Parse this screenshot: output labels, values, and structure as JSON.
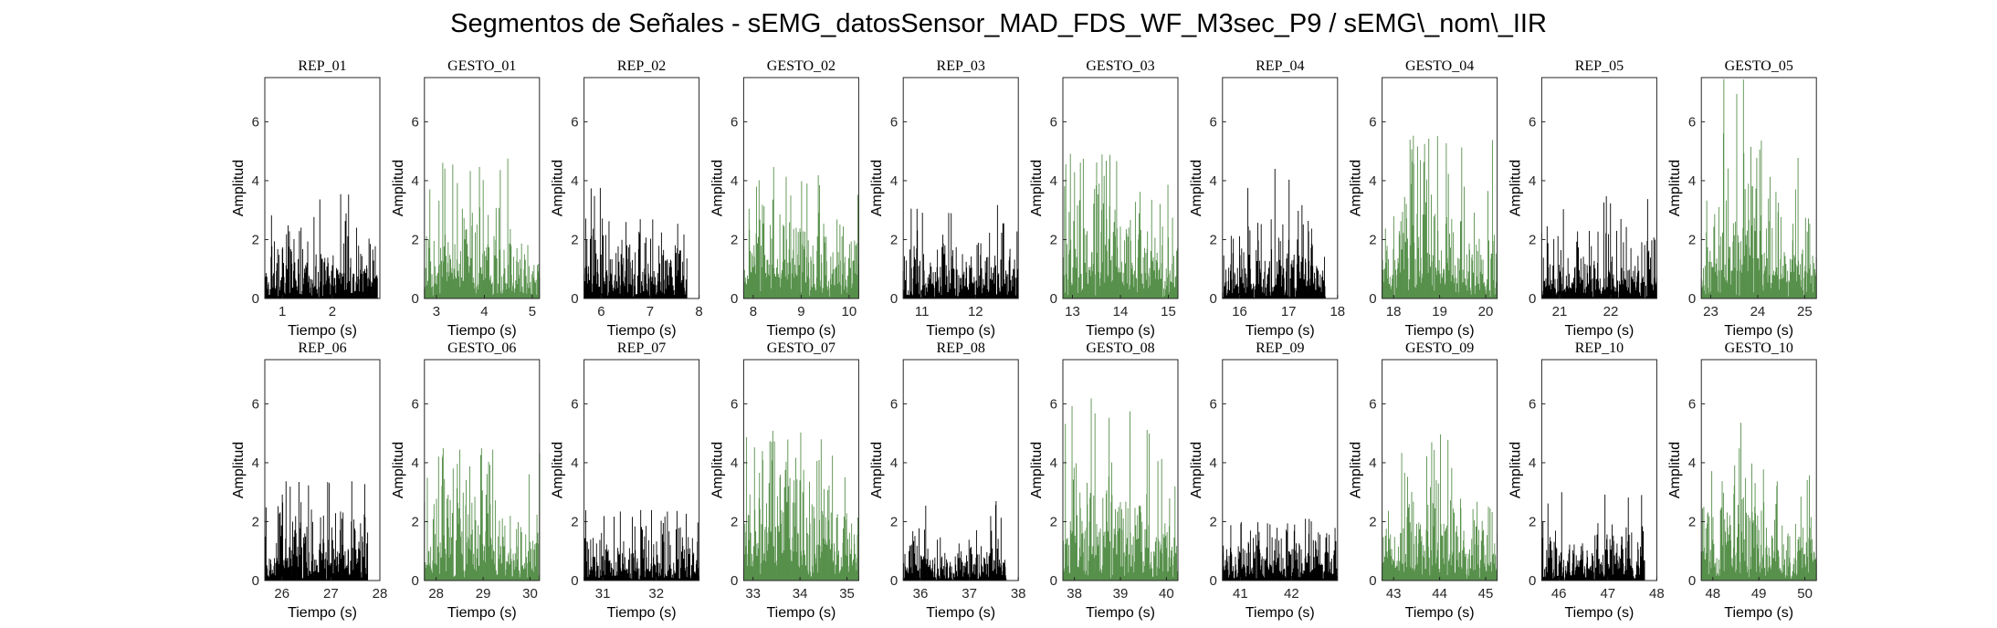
{
  "figure": {
    "title": "Segmentos de Señales - sEMG_datosSensor_MAD_FDS_WF_M3sec_P9 / sEMG\\_nom\\_IIR"
  },
  "colors": {
    "rep": "#000000",
    "gesto": "#3a7d2c",
    "axis": "#262626"
  },
  "chart_data": [
    {
      "type": "bar",
      "title": "REP_01",
      "xlabel": "Tiempo (s)",
      "ylabel": "Amplitud",
      "xlim": [
        0.65,
        2.95
      ],
      "ylim": [
        0,
        7.5
      ],
      "xticks": [
        1,
        2
      ],
      "yticks": [
        0,
        2,
        4,
        6
      ],
      "series": [
        {
          "name": "REP_01",
          "x_range": [
            0.65,
            2.9
          ],
          "typical": 0.9,
          "max": 3.6
        }
      ]
    },
    {
      "type": "bar",
      "title": "GESTO_01",
      "xlabel": "Tiempo (s)",
      "ylabel": "Amplitud",
      "xlim": [
        2.75,
        5.15
      ],
      "ylim": [
        0,
        7.5
      ],
      "xticks": [
        3,
        4,
        5
      ],
      "yticks": [
        0,
        2,
        4,
        6
      ],
      "series": [
        {
          "name": "GESTO_01",
          "x_range": [
            2.75,
            5.15
          ],
          "typical": 1.5,
          "max": 4.9
        }
      ]
    },
    {
      "type": "bar",
      "title": "REP_02",
      "xlabel": "Tiempo (s)",
      "ylabel": "Amplitud",
      "xlim": [
        5.65,
        8.0
      ],
      "ylim": [
        0,
        7.5
      ],
      "xticks": [
        6,
        7,
        8
      ],
      "yticks": [
        0,
        2,
        4,
        6
      ],
      "series": [
        {
          "name": "REP_02",
          "x_range": [
            5.65,
            7.75
          ],
          "typical": 1.0,
          "max": 3.8
        }
      ]
    },
    {
      "type": "bar",
      "title": "GESTO_02",
      "xlabel": "Tiempo (s)",
      "ylabel": "Amplitud",
      "xlim": [
        7.8,
        10.2
      ],
      "ylim": [
        0,
        7.5
      ],
      "xticks": [
        8,
        9,
        10
      ],
      "yticks": [
        0,
        2,
        4,
        6
      ],
      "series": [
        {
          "name": "GESTO_02",
          "x_range": [
            7.8,
            10.2
          ],
          "typical": 1.4,
          "max": 4.5
        }
      ]
    },
    {
      "type": "bar",
      "title": "REP_03",
      "xlabel": "Tiempo (s)",
      "ylabel": "Amplitud",
      "xlim": [
        10.65,
        12.8
      ],
      "ylim": [
        0,
        7.5
      ],
      "xticks": [
        11,
        12
      ],
      "yticks": [
        0,
        2,
        4,
        6
      ],
      "series": [
        {
          "name": "REP_03",
          "x_range": [
            10.65,
            12.8
          ],
          "typical": 0.9,
          "max": 3.2
        }
      ]
    },
    {
      "type": "bar",
      "title": "GESTO_03",
      "xlabel": "Tiempo (s)",
      "ylabel": "Amplitud",
      "xlim": [
        12.8,
        15.2
      ],
      "ylim": [
        0,
        7.5
      ],
      "xticks": [
        13,
        14,
        15
      ],
      "yticks": [
        0,
        2,
        4,
        6
      ],
      "series": [
        {
          "name": "GESTO_03",
          "x_range": [
            12.8,
            15.2
          ],
          "typical": 1.6,
          "max": 5.0
        }
      ]
    },
    {
      "type": "bar",
      "title": "REP_04",
      "xlabel": "Tiempo (s)",
      "ylabel": "Amplitud",
      "xlim": [
        15.65,
        18.0
      ],
      "ylim": [
        0,
        7.5
      ],
      "xticks": [
        16,
        17,
        18
      ],
      "yticks": [
        0,
        2,
        4,
        6
      ],
      "series": [
        {
          "name": "REP_04",
          "x_range": [
            15.65,
            17.75
          ],
          "typical": 1.0,
          "max": 4.5
        }
      ]
    },
    {
      "type": "bar",
      "title": "GESTO_04",
      "xlabel": "Tiempo (s)",
      "ylabel": "Amplitud",
      "xlim": [
        17.75,
        20.25
      ],
      "ylim": [
        0,
        7.5
      ],
      "xticks": [
        18,
        19,
        20
      ],
      "yticks": [
        0,
        2,
        4,
        6
      ],
      "series": [
        {
          "name": "GESTO_04",
          "x_range": [
            17.75,
            20.25
          ],
          "typical": 1.6,
          "max": 5.7
        }
      ]
    },
    {
      "type": "bar",
      "title": "REP_05",
      "xlabel": "Tiempo (s)",
      "ylabel": "Amplitud",
      "xlim": [
        20.65,
        22.9
      ],
      "ylim": [
        0,
        7.5
      ],
      "xticks": [
        21,
        22
      ],
      "yticks": [
        0,
        2,
        4,
        6
      ],
      "series": [
        {
          "name": "REP_05",
          "x_range": [
            20.65,
            22.9
          ],
          "typical": 0.9,
          "max": 3.6
        }
      ]
    },
    {
      "type": "bar",
      "title": "GESTO_05",
      "xlabel": "Tiempo (s)",
      "ylabel": "Amplitud",
      "xlim": [
        22.8,
        25.25
      ],
      "ylim": [
        0,
        7.5
      ],
      "xticks": [
        23,
        24,
        25
      ],
      "yticks": [
        0,
        2,
        4,
        6
      ],
      "series": [
        {
          "name": "GESTO_05",
          "x_range": [
            22.8,
            25.25
          ],
          "typical": 1.5,
          "max": 7.5
        }
      ]
    },
    {
      "type": "bar",
      "title": "REP_06",
      "xlabel": "Tiempo (s)",
      "ylabel": "Amplitud",
      "xlim": [
        25.65,
        28.0
      ],
      "ylim": [
        0,
        7.5
      ],
      "xticks": [
        26,
        27,
        28
      ],
      "yticks": [
        0,
        2,
        4,
        6
      ],
      "series": [
        {
          "name": "REP_06",
          "x_range": [
            25.65,
            27.75
          ],
          "typical": 1.0,
          "max": 3.4
        }
      ]
    },
    {
      "type": "bar",
      "title": "GESTO_06",
      "xlabel": "Tiempo (s)",
      "ylabel": "Amplitud",
      "xlim": [
        27.75,
        30.2
      ],
      "ylim": [
        0,
        7.5
      ],
      "xticks": [
        28,
        29,
        30
      ],
      "yticks": [
        0,
        2,
        4,
        6
      ],
      "series": [
        {
          "name": "GESTO_06",
          "x_range": [
            27.75,
            30.2
          ],
          "typical": 1.4,
          "max": 4.6
        }
      ]
    },
    {
      "type": "bar",
      "title": "REP_07",
      "xlabel": "Tiempo (s)",
      "ylabel": "Amplitud",
      "xlim": [
        30.65,
        32.8
      ],
      "ylim": [
        0,
        7.5
      ],
      "xticks": [
        31,
        32
      ],
      "yticks": [
        0,
        2,
        4,
        6
      ],
      "series": [
        {
          "name": "REP_07",
          "x_range": [
            30.65,
            32.8
          ],
          "typical": 0.7,
          "max": 2.4
        }
      ]
    },
    {
      "type": "bar",
      "title": "GESTO_07",
      "xlabel": "Tiempo (s)",
      "ylabel": "Amplitud",
      "xlim": [
        32.8,
        35.25
      ],
      "ylim": [
        0,
        7.5
      ],
      "xticks": [
        33,
        34,
        35
      ],
      "yticks": [
        0,
        2,
        4,
        6
      ],
      "series": [
        {
          "name": "GESTO_07",
          "x_range": [
            32.8,
            35.25
          ],
          "typical": 1.6,
          "max": 5.1
        }
      ]
    },
    {
      "type": "bar",
      "title": "REP_08",
      "xlabel": "Tiempo (s)",
      "ylabel": "Amplitud",
      "xlim": [
        35.65,
        38.0
      ],
      "ylim": [
        0,
        7.5
      ],
      "xticks": [
        36,
        37,
        38
      ],
      "yticks": [
        0,
        2,
        4,
        6
      ],
      "series": [
        {
          "name": "REP_08",
          "x_range": [
            35.65,
            37.75
          ],
          "typical": 0.6,
          "max": 3.3
        }
      ]
    },
    {
      "type": "bar",
      "title": "GESTO_08",
      "xlabel": "Tiempo (s)",
      "ylabel": "Amplitud",
      "xlim": [
        37.75,
        40.25
      ],
      "ylim": [
        0,
        7.5
      ],
      "xticks": [
        38,
        39,
        40
      ],
      "yticks": [
        0,
        2,
        4,
        6
      ],
      "series": [
        {
          "name": "GESTO_08",
          "x_range": [
            37.75,
            40.25
          ],
          "typical": 1.7,
          "max": 6.3
        }
      ]
    },
    {
      "type": "bar",
      "title": "REP_09",
      "xlabel": "Tiempo (s)",
      "ylabel": "Amplitud",
      "xlim": [
        40.65,
        42.9
      ],
      "ylim": [
        0,
        7.5
      ],
      "xticks": [
        41,
        42
      ],
      "yticks": [
        0,
        2,
        4,
        6
      ],
      "series": [
        {
          "name": "REP_09",
          "x_range": [
            40.65,
            42.9
          ],
          "typical": 0.8,
          "max": 2.1
        }
      ]
    },
    {
      "type": "bar",
      "title": "GESTO_09",
      "xlabel": "Tiempo (s)",
      "ylabel": "Amplitud",
      "xlim": [
        42.75,
        45.25
      ],
      "ylim": [
        0,
        7.5
      ],
      "xticks": [
        43,
        44,
        45
      ],
      "yticks": [
        0,
        2,
        4,
        6
      ],
      "series": [
        {
          "name": "GESTO_09",
          "x_range": [
            42.75,
            45.25
          ],
          "typical": 1.5,
          "max": 5.2
        }
      ]
    },
    {
      "type": "bar",
      "title": "REP_10",
      "xlabel": "Tiempo (s)",
      "ylabel": "Amplitud",
      "xlim": [
        45.65,
        48.0
      ],
      "ylim": [
        0,
        7.5
      ],
      "xticks": [
        46,
        47,
        48
      ],
      "yticks": [
        0,
        2,
        4,
        6
      ],
      "series": [
        {
          "name": "REP_10",
          "x_range": [
            45.65,
            47.75
          ],
          "typical": 0.8,
          "max": 3.0
        }
      ]
    },
    {
      "type": "bar",
      "title": "GESTO_10",
      "xlabel": "Tiempo (s)",
      "ylabel": "Amplitud",
      "xlim": [
        47.75,
        50.25
      ],
      "ylim": [
        0,
        7.5
      ],
      "xticks": [
        48,
        49,
        50
      ],
      "yticks": [
        0,
        2,
        4,
        6
      ],
      "series": [
        {
          "name": "GESTO_10",
          "x_range": [
            47.75,
            50.25
          ],
          "typical": 1.4,
          "max": 5.5
        }
      ]
    }
  ]
}
